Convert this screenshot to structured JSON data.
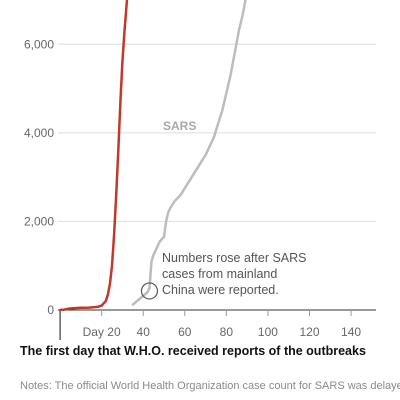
{
  "chart_data": {
    "type": "line",
    "title": "",
    "xlabel": "",
    "ylabel": "",
    "xlim": [
      -1,
      152
    ],
    "ylim": [
      0,
      7000
    ],
    "grid": true,
    "x_ticks": [
      {
        "value": 20,
        "label": "Day 20"
      },
      {
        "value": 40,
        "label": "40"
      },
      {
        "value": 60,
        "label": "60"
      },
      {
        "value": 80,
        "label": "80"
      },
      {
        "value": 100,
        "label": "100"
      },
      {
        "value": 120,
        "label": "120"
      },
      {
        "value": 140,
        "label": "140"
      }
    ],
    "y_ticks": [
      {
        "value": 0,
        "label": "0"
      },
      {
        "value": 2000,
        "label": "2,000"
      },
      {
        "value": 4000,
        "label": "4,000"
      },
      {
        "value": 6000,
        "label": "6,000"
      }
    ],
    "series": [
      {
        "name": "",
        "color": "#c0392b",
        "x": [
          0,
          2,
          4,
          6,
          8,
          10,
          12,
          14,
          16,
          18,
          20,
          22,
          23,
          24,
          25,
          26,
          27,
          28,
          29,
          30,
          31,
          32,
          33,
          34
        ],
        "y": [
          0,
          10,
          30,
          40,
          45,
          50,
          50,
          55,
          60,
          70,
          100,
          200,
          350,
          600,
          1000,
          1700,
          2600,
          3600,
          4700,
          5600,
          6300,
          6900,
          7500,
          8000
        ]
      },
      {
        "name": "SARS",
        "color": "#bcbcbc",
        "x": [
          35,
          37,
          40,
          42,
          43,
          44,
          45,
          46,
          47,
          48,
          50,
          51,
          52,
          53,
          55,
          58,
          60,
          62,
          64,
          66,
          68,
          70,
          72,
          74,
          76,
          78,
          80,
          82,
          84,
          86,
          88,
          90
        ],
        "y": [
          120,
          200,
          320,
          400,
          500,
          1100,
          1250,
          1350,
          1450,
          1550,
          1650,
          2000,
          2200,
          2300,
          2450,
          2600,
          2750,
          2900,
          3050,
          3200,
          3350,
          3500,
          3700,
          3900,
          4200,
          4500,
          4900,
          5300,
          5800,
          6300,
          6700,
          7200
        ]
      }
    ],
    "annotations": [
      {
        "text_lines": [
          "Numbers rose after SARS",
          "cases from mainland",
          "China were reported."
        ],
        "x": 43,
        "y": 430
      }
    ],
    "series_labels": [
      {
        "text": "SARS",
        "series": 1
      }
    ]
  },
  "caption": "The first day that W.H.O. received reports of the outbreaks",
  "notes": "Notes: The official World Health Organization case count for SARS was delayed"
}
